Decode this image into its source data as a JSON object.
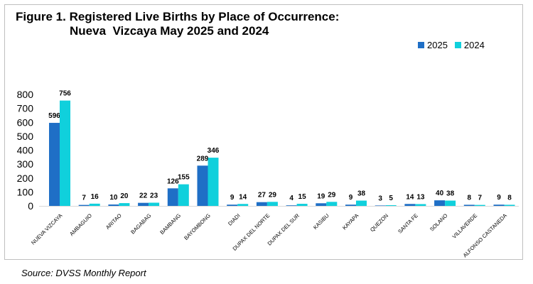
{
  "title_line1": "Figure 1. Registered Live Births by Place of Occurrence:",
  "title_line2": "Nueva  Vizcaya May 2025 and 2024",
  "source": "Source: DVSS Monthly Report",
  "colors": {
    "s2025": "#1f6fc6",
    "s2024": "#10d0dc"
  },
  "chart_data": {
    "type": "bar",
    "title": "Figure 1. Registered Live Births by Place of Occurrence: Nueva Vizcaya May 2025 and 2024",
    "xlabel": "",
    "ylabel": "",
    "ylim": [
      0,
      800
    ],
    "yticks": [
      0,
      100,
      200,
      300,
      400,
      500,
      600,
      700,
      800
    ],
    "grid": false,
    "legend_position": "top-right",
    "categories": [
      "NUEVA VIZCAYA",
      "AMBAGUIO",
      "ARITAO",
      "BAGABAG",
      "BAMBANG",
      "BAYOMBONG",
      "DIADI",
      "DUPAX DEL NORTE",
      "DUPAX DEL SUR",
      "KASIBU",
      "KAYAPA",
      "QUEZON",
      "SANTA FE",
      "SOLANO",
      "VILLAVERDE",
      "ALFONSO CASTANEDA"
    ],
    "series": [
      {
        "name": "2025",
        "values": [
          596,
          7,
          10,
          22,
          126,
          289,
          9,
          27,
          4,
          19,
          9,
          3,
          14,
          40,
          8,
          9
        ]
      },
      {
        "name": "2024",
        "values": [
          756,
          16,
          20,
          23,
          155,
          346,
          14,
          29,
          15,
          29,
          38,
          5,
          13,
          38,
          7,
          8
        ]
      }
    ]
  }
}
